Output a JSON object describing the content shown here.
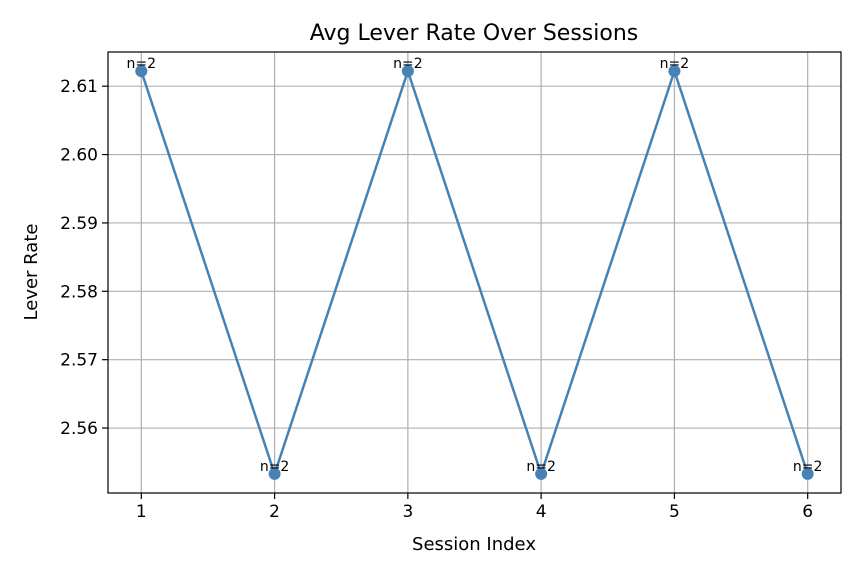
{
  "chart_data": {
    "type": "line",
    "title": "Avg Lever Rate Over Sessions",
    "xlabel": "Session Index",
    "ylabel": "Lever Rate",
    "x": [
      1,
      2,
      3,
      4,
      5,
      6
    ],
    "xticks": [
      "1",
      "2",
      "3",
      "4",
      "5",
      "6"
    ],
    "yticks": [
      "2.56",
      "2.57",
      "2.58",
      "2.59",
      "2.60",
      "2.61"
    ],
    "ytick_values": [
      2.56,
      2.57,
      2.58,
      2.59,
      2.6,
      2.61
    ],
    "xlim": [
      0.75,
      6.25
    ],
    "ylim": [
      2.5505,
      2.615
    ],
    "series": [
      {
        "values": [
          2.6122,
          2.5533,
          2.6122,
          2.5533,
          2.6122,
          2.5533
        ],
        "color": "#4682b4",
        "marker": "circle",
        "point_labels": [
          "n=2",
          "n=2",
          "n=2",
          "n=2",
          "n=2",
          "n=2"
        ]
      }
    ],
    "grid": true,
    "legend": "none"
  }
}
